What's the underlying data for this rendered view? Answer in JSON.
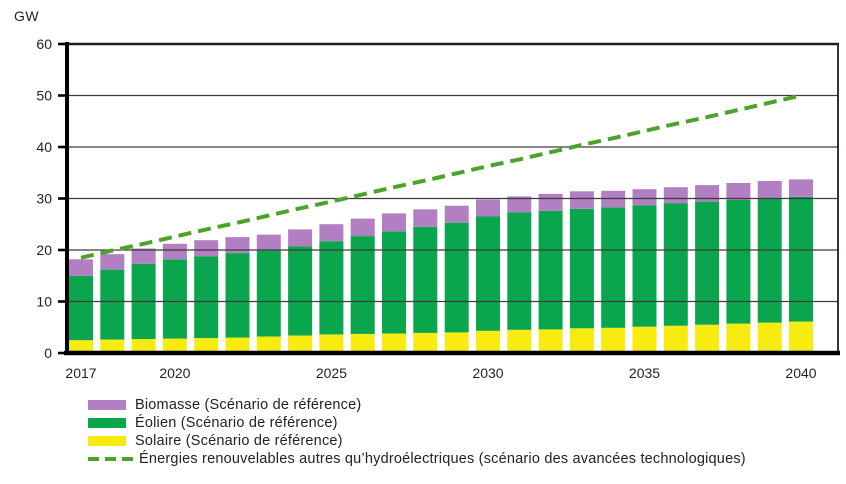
{
  "axis_unit_label": "GW",
  "chart_data": {
    "type": "bar",
    "stacked": true,
    "title": "",
    "ylabel": "GW",
    "xlabel": "",
    "ylim": [
      0,
      60
    ],
    "y_ticks": [
      0,
      10,
      20,
      30,
      40,
      50,
      60
    ],
    "grid": "horizontal",
    "legend_position": "bottom-left",
    "x": [
      2017,
      2018,
      2019,
      2020,
      2021,
      2022,
      2023,
      2024,
      2025,
      2026,
      2027,
      2028,
      2029,
      2030,
      2031,
      2032,
      2033,
      2034,
      2035,
      2036,
      2037,
      2038,
      2039,
      2040
    ],
    "x_axis_tick_labels": [
      "2017",
      "2020",
      "2025",
      "2030",
      "2035",
      "2040"
    ],
    "bar_series": [
      {
        "name": "Solaire (Scénario de référence)",
        "color": "#f8eb10",
        "values": [
          2.5,
          2.6,
          2.7,
          2.8,
          2.9,
          3.0,
          3.2,
          3.4,
          3.6,
          3.7,
          3.8,
          3.9,
          4.0,
          4.3,
          4.5,
          4.6,
          4.8,
          4.9,
          5.1,
          5.3,
          5.5,
          5.7,
          5.9,
          6.1
        ]
      },
      {
        "name": "Éolien (Scénario de référence)",
        "color": "#0aa64e",
        "values": [
          12.5,
          13.6,
          14.6,
          15.4,
          15.9,
          16.4,
          16.7,
          17.3,
          18.1,
          19.0,
          19.8,
          20.6,
          21.3,
          22.2,
          22.8,
          23.0,
          23.2,
          23.4,
          23.6,
          23.8,
          23.9,
          24.0,
          24.1,
          24.2
        ]
      },
      {
        "name": "Biomasse (Scénario de référence)",
        "color": "#b27fc3",
        "values": [
          3.2,
          3.0,
          3.0,
          3.0,
          3.1,
          3.1,
          3.1,
          3.3,
          3.3,
          3.4,
          3.5,
          3.4,
          3.3,
          3.3,
          3.1,
          3.3,
          3.4,
          3.2,
          3.1,
          3.1,
          3.2,
          3.3,
          3.4,
          3.4
        ]
      }
    ],
    "line_series": [
      {
        "name": "Énergies renouvelables autres qu’hydroélectriques (scénario des avancées technologiques)",
        "color": "#4ba32b",
        "style": "dashed",
        "values": [
          18.5,
          19.9,
          21.2,
          22.6,
          24.0,
          25.3,
          26.7,
          28.1,
          29.4,
          30.8,
          32.2,
          33.5,
          34.9,
          36.3,
          37.6,
          39.0,
          40.4,
          41.7,
          43.1,
          44.5,
          45.8,
          47.2,
          48.6,
          50.0
        ]
      }
    ]
  },
  "legend": {
    "items": [
      {
        "label": "Biomasse (Scénario de référence)",
        "color": "#b27fc3",
        "swatch": "rect"
      },
      {
        "label": "Éolien (Scénario de référence)",
        "color": "#0aa64e",
        "swatch": "rect"
      },
      {
        "label": "Solaire (Scénario de référence)",
        "color": "#f8eb10",
        "swatch": "rect"
      },
      {
        "label": "Énergies renouvelables autres qu’hydroélectriques (scénario des avancées technologiques)",
        "color": "#4ba32b",
        "swatch": "dashed-line"
      }
    ]
  }
}
